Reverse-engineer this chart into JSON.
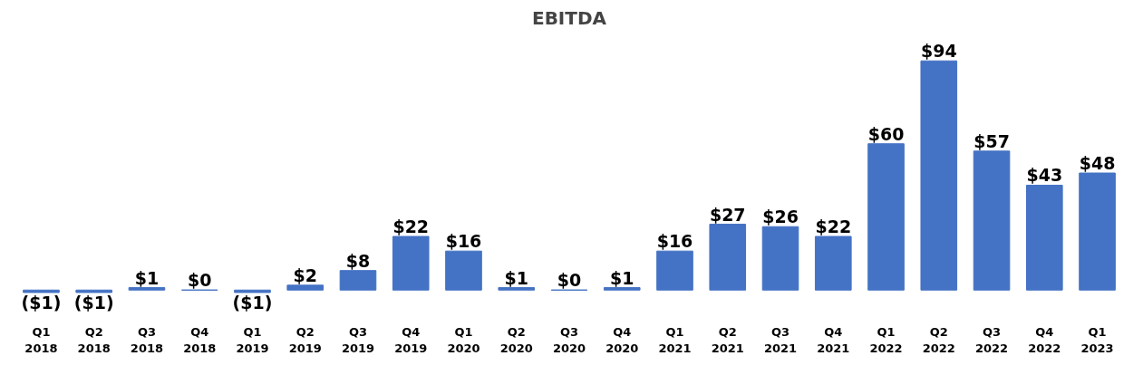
{
  "chart_data": {
    "type": "bar",
    "title": "EBITDA",
    "categories": [
      "Q1\n2018",
      "Q2\n2018",
      "Q3\n2018",
      "Q4\n2018",
      "Q1\n2019",
      "Q2\n2019",
      "Q3\n2019",
      "Q4\n2019",
      "Q1\n2020",
      "Q2\n2020",
      "Q3\n2020",
      "Q4\n2020",
      "Q1\n2021",
      "Q2\n2021",
      "Q3\n2021",
      "Q4\n2021",
      "Q1\n2022",
      "Q2\n2022",
      "Q3\n2022",
      "Q4\n2022",
      "Q1\n2023"
    ],
    "values": [
      -1,
      -1,
      1,
      0,
      -1,
      2,
      8,
      22,
      16,
      1,
      0,
      1,
      16,
      27,
      26,
      22,
      60,
      94,
      57,
      43,
      48
    ],
    "value_labels": [
      "($1)",
      "($1)",
      "$1",
      "$0",
      "($1)",
      "$2",
      "$8",
      "$22",
      "$16",
      "$1",
      "$0",
      "$1",
      "$16",
      "$27",
      "$26",
      "$22",
      "$60",
      "$94",
      "$57",
      "$43",
      "$48"
    ],
    "color": "#4472c4",
    "grid": false
  }
}
